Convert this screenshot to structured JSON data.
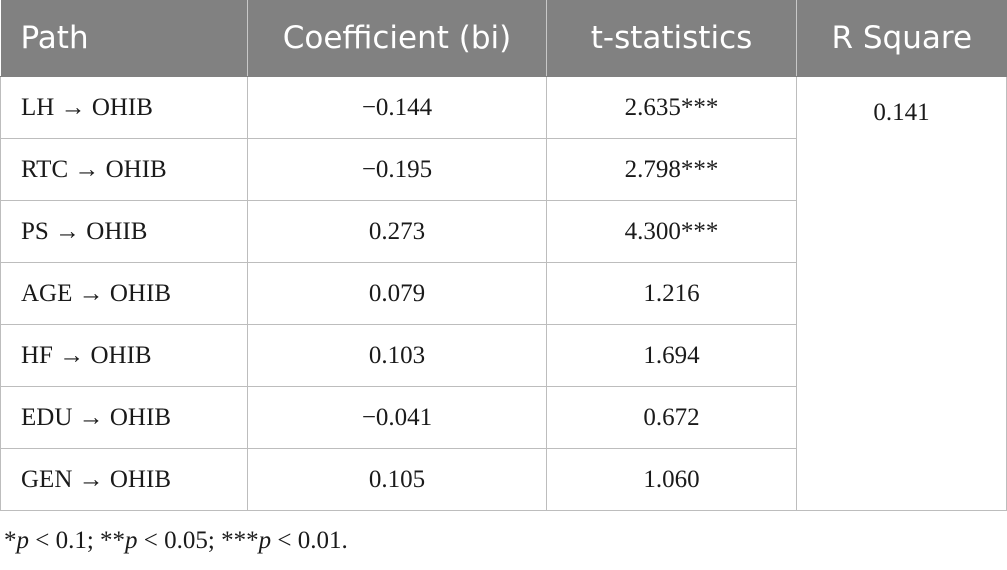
{
  "table": {
    "headers": {
      "path": "Path",
      "coefficient": "Coefficient (bi)",
      "t_statistics": "t-statistics",
      "r_square": "R Square"
    },
    "rows": [
      {
        "path": "LH → OHIB",
        "coefficient": "−0.144",
        "t_statistics": "2.635***"
      },
      {
        "path": "RTC → OHIB",
        "coefficient": "−0.195",
        "t_statistics": "2.798***"
      },
      {
        "path": "PS → OHIB",
        "coefficient": "0.273",
        "t_statistics": "4.300***"
      },
      {
        "path": "AGE → OHIB",
        "coefficient": "0.079",
        "t_statistics": "1.216"
      },
      {
        "path": "HF → OHIB",
        "coefficient": "0.103",
        "t_statistics": "1.694"
      },
      {
        "path": "EDU → OHIB",
        "coefficient": "−0.041",
        "t_statistics": "0.672"
      },
      {
        "path": "GEN → OHIB",
        "coefficient": "0.105",
        "t_statistics": "1.060"
      }
    ],
    "r_square_value": "0.141"
  },
  "footnote": {
    "star1": "*",
    "p1": "p",
    "t1": " < 0.1; ",
    "star2": "**",
    "p2": "p",
    "t2": " < 0.05; ",
    "star3": "***",
    "p3": "p",
    "t3": " < 0.01."
  }
}
